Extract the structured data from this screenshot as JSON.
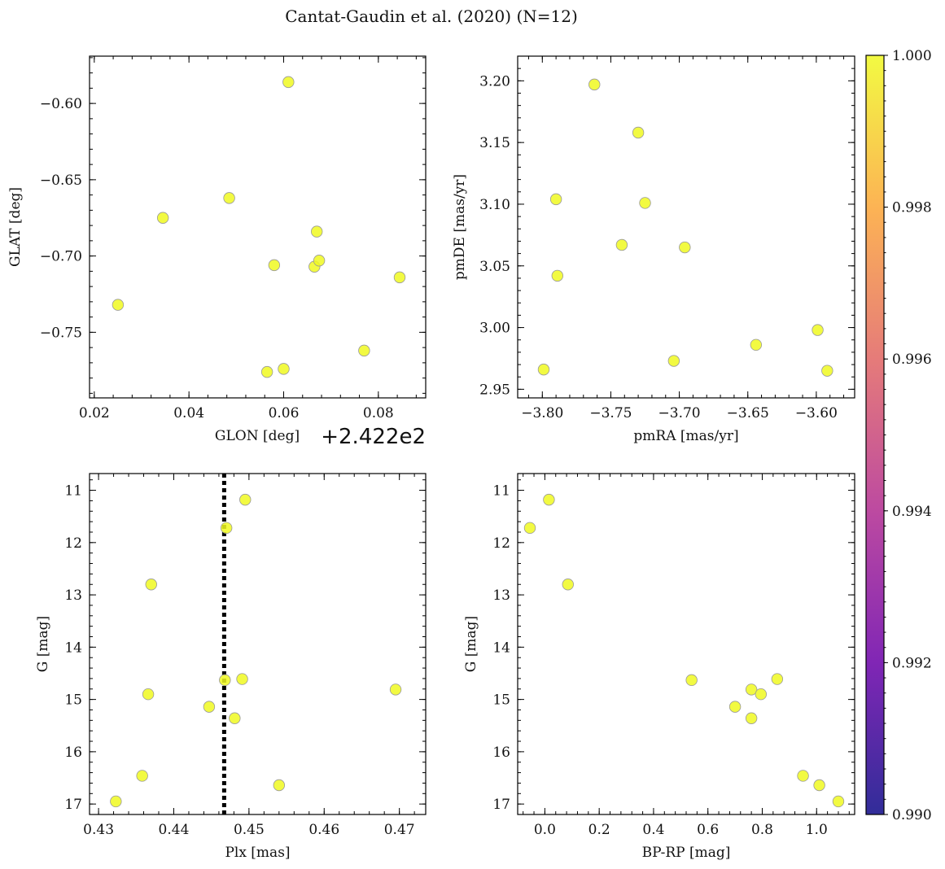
{
  "figure": {
    "title": "Cantat-Gaudin et al. (2020) (N=12)",
    "point_color": "#f0f921",
    "point_edge": "#999999"
  },
  "chart_data": [
    {
      "id": "lonlat",
      "type": "scatter",
      "xlabel": "GLON [deg]",
      "ylabel": "GLAT [deg]",
      "x_offset_label": "+2.422e2",
      "xlim": [
        0.019,
        0.09
      ],
      "ylim": [
        -0.793,
        -0.569
      ],
      "xticks": [
        0.02,
        0.04,
        0.06,
        0.08
      ],
      "xticklabels": [
        "0.02",
        "0.04",
        "0.06",
        "0.08"
      ],
      "yticks": [
        -0.6,
        -0.65,
        -0.7,
        -0.75
      ],
      "yticklabels": [
        "−0.60",
        "−0.65",
        "−0.70",
        "−0.75"
      ],
      "x": [
        0.061,
        0.0485,
        0.0345,
        0.067,
        0.058,
        0.0665,
        0.0675,
        0.0845,
        0.025,
        0.077,
        0.0565,
        0.06
      ],
      "y": [
        -0.586,
        -0.662,
        -0.675,
        -0.684,
        -0.706,
        -0.707,
        -0.703,
        -0.714,
        -0.732,
        -0.762,
        -0.776,
        -0.774
      ]
    },
    {
      "id": "pm",
      "type": "scatter",
      "xlabel": "pmRA [mas/yr]",
      "ylabel": "pmDE [mas/yr]",
      "xlim": [
        -3.818,
        -3.572
      ],
      "ylim": [
        2.943,
        3.22
      ],
      "xticks": [
        -3.8,
        -3.75,
        -3.7,
        -3.65,
        -3.6
      ],
      "xticklabels": [
        "−3.80",
        "−3.75",
        "−3.70",
        "−3.65",
        "−3.60"
      ],
      "yticks": [
        2.95,
        3.0,
        3.05,
        3.1,
        3.15,
        3.2
      ],
      "yticklabels": [
        "2.95",
        "3.00",
        "3.05",
        "3.10",
        "3.15",
        "3.20"
      ],
      "x": [
        -3.762,
        -3.73,
        -3.79,
        -3.725,
        -3.742,
        -3.696,
        -3.789,
        -3.599,
        -3.644,
        -3.704,
        -3.799,
        -3.592
      ],
      "y": [
        3.197,
        3.158,
        3.104,
        3.101,
        3.067,
        3.065,
        3.042,
        2.998,
        2.986,
        2.973,
        2.966,
        2.965
      ]
    },
    {
      "id": "plx",
      "type": "scatter",
      "xlabel": "Plx [mas]",
      "ylabel": "G [mag]",
      "xlim": [
        0.4288,
        0.4735
      ],
      "ylim": [
        17.2,
        10.68
      ],
      "xticks": [
        0.43,
        0.44,
        0.45,
        0.46,
        0.47
      ],
      "xticklabels": [
        "0.43",
        "0.44",
        "0.45",
        "0.46",
        "0.47"
      ],
      "yticks": [
        11,
        12,
        13,
        14,
        15,
        16,
        17
      ],
      "yticklabels": [
        "11",
        "12",
        "13",
        "14",
        "15",
        "16",
        "17"
      ],
      "vline": 0.4467,
      "x": [
        0.4495,
        0.447,
        0.437,
        0.4468,
        0.4491,
        0.4695,
        0.4366,
        0.4447,
        0.4481,
        0.4358,
        0.454,
        0.4323
      ],
      "y": [
        11.18,
        11.72,
        12.8,
        14.63,
        14.61,
        14.81,
        14.9,
        15.14,
        15.36,
        16.46,
        16.64,
        16.95
      ]
    },
    {
      "id": "cmd",
      "type": "scatter",
      "xlabel": "BP-RP [mag]",
      "ylabel": "G [mag]",
      "xlim": [
        -0.1,
        1.14
      ],
      "ylim": [
        17.2,
        10.68
      ],
      "xticks": [
        0.0,
        0.2,
        0.4,
        0.6,
        0.8,
        1.0
      ],
      "xticklabels": [
        "0.0",
        "0.2",
        "0.4",
        "0.6",
        "0.8",
        "1.0"
      ],
      "yticks": [
        11,
        12,
        13,
        14,
        15,
        16,
        17
      ],
      "yticklabels": [
        "11",
        "12",
        "13",
        "14",
        "15",
        "16",
        "17"
      ],
      "x": [
        0.015,
        -0.055,
        0.085,
        0.54,
        0.855,
        0.76,
        0.795,
        0.7,
        0.76,
        0.95,
        1.01,
        1.08
      ],
      "y": [
        11.18,
        11.72,
        12.8,
        14.63,
        14.61,
        14.81,
        14.9,
        15.14,
        15.36,
        16.46,
        16.64,
        16.95
      ]
    }
  ],
  "colorbar": {
    "ticks": [
      "1.000",
      "0.998",
      "0.996",
      "0.994",
      "0.992",
      "0.990"
    ],
    "min": 0.99,
    "max": 1.0,
    "stops": [
      "#f0f921",
      "#fca636",
      "#e16462",
      "#b12a90",
      "#6a00a8",
      "#0d0887"
    ]
  }
}
